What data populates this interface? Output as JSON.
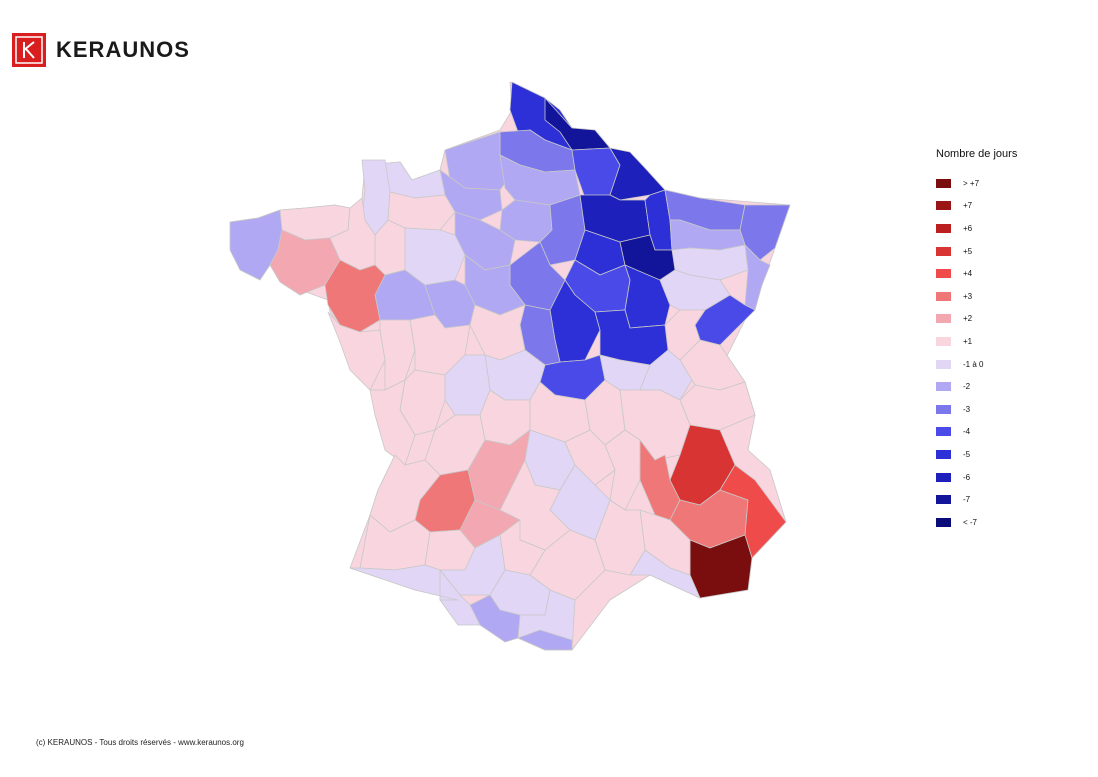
{
  "brand": {
    "name": "KERAUNOS",
    "color": "#d81e1e"
  },
  "legend": {
    "title": "Nombre de jours",
    "items": [
      {
        "label": "> +7",
        "color": "#7a0d0d"
      },
      {
        "label": "+7",
        "color": "#9a1515"
      },
      {
        "label": "+6",
        "color": "#bb2020"
      },
      {
        "label": "+5",
        "color": "#d93434"
      },
      {
        "label": "+4",
        "color": "#ef4b4b"
      },
      {
        "label": "+3",
        "color": "#f07777"
      },
      {
        "label": "+2",
        "color": "#f3a7b1"
      },
      {
        "label": "+1",
        "color": "#f8d5df"
      },
      {
        "label": "-1 à 0",
        "color": "#e2d6f6"
      },
      {
        "label": "-2",
        "color": "#b0a8f2"
      },
      {
        "label": "-3",
        "color": "#7c78ec"
      },
      {
        "label": "-4",
        "color": "#4a4ae8"
      },
      {
        "label": "-5",
        "color": "#2d30d6"
      },
      {
        "label": "-6",
        "color": "#1d20ba"
      },
      {
        "label": "-7",
        "color": "#12149a"
      },
      {
        "label": "< -7",
        "color": "#0a0c78"
      }
    ]
  },
  "footer": {
    "text": "(c) KERAUNOS - Tous droits réservés - www.keraunos.org"
  }
}
